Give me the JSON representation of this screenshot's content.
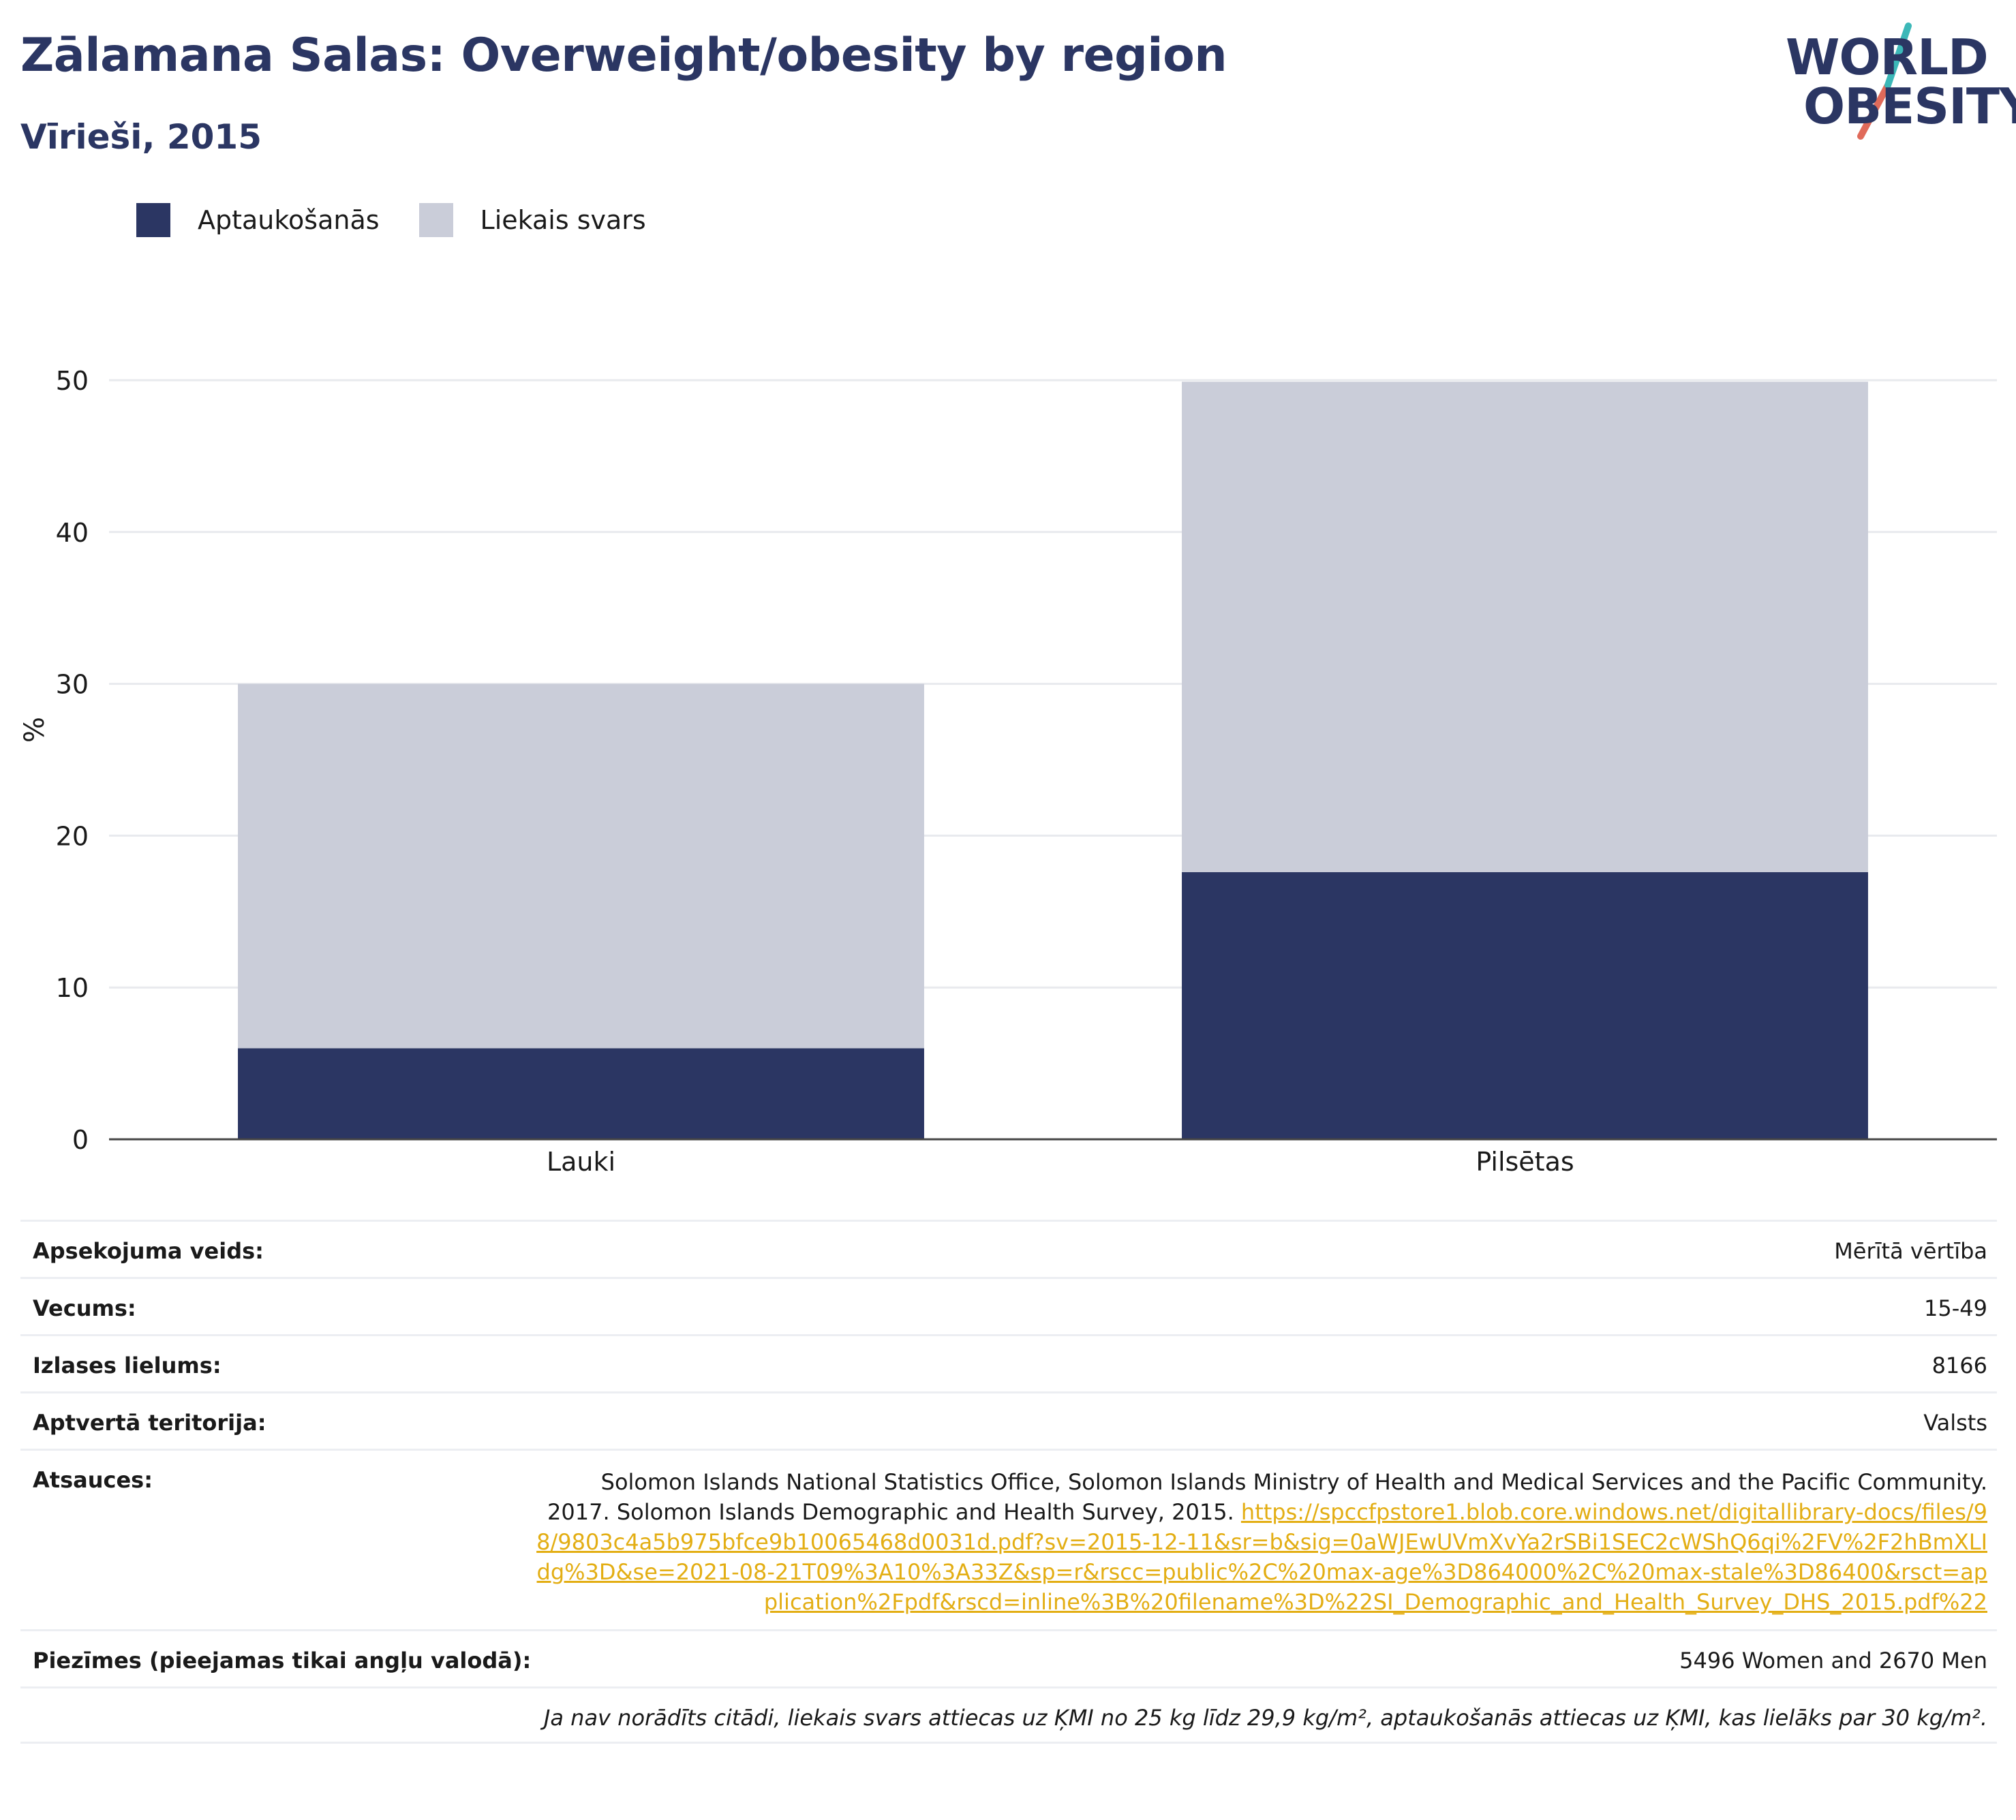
{
  "title": "Zālamana Salas: Overweight/obesity by region",
  "subtitle": "Vīrieši, 2015",
  "logo": {
    "line1": "WORLD",
    "line2": "OBESITY",
    "accent_teal": "#3cb8b8",
    "accent_red": "#e06a5a"
  },
  "colors": {
    "obesity": "#2b3663",
    "overweight": "#cacdd9",
    "text": "#2b3663",
    "link": "#e3ae14"
  },
  "chart_data": {
    "type": "bar",
    "stacked": true,
    "categories": [
      "Lauki",
      "Pilsētas"
    ],
    "series": [
      {
        "name": "Aptaukošanās",
        "values": [
          6.0,
          17.6
        ],
        "color": "#2b3663"
      },
      {
        "name": "Liekais svars",
        "values": [
          24.0,
          32.3
        ],
        "color": "#cacdd9"
      }
    ],
    "ylabel": "%",
    "ylim": [
      0,
      50
    ],
    "yticks": [
      0,
      10,
      20,
      30,
      40,
      50
    ],
    "grid": true,
    "legend": "top-left"
  },
  "table": {
    "rows": [
      {
        "key": "Apsekojuma veids:",
        "value": "Mērītā vērtība"
      },
      {
        "key": "Vecums:",
        "value": "15-49"
      },
      {
        "key": "Izlases lielums:",
        "value": "8166"
      },
      {
        "key": "Aptvertā teritorija:",
        "value": "Valsts"
      }
    ],
    "references_key": "Atsauces:",
    "references_text": "Solomon Islands National Statistics Office, Solomon Islands Ministry of Health and Medical Services and the Pacific Community. 2017. Solomon Islands Demographic and Health Survey, 2015.",
    "references_link": "https://spccfpstore1.blob.core.windows.net/digitallibrary-docs/files/98/9803c4a5b975bfce9b10065468d0031d.pdf?sv=2015-12-11&sr=b&sig=0aWJEwUVmXvYa2rSBi1SEC2cWShQ6qi%2FV%2F2hBmXLIdg%3D&se=2021-08-21T09%3A10%3A33Z&sp=r&rscc=public%2C%20max-age%3D864000%2C%20max-stale%3D86400&rsct=application%2Fpdf&rscd=inline%3B%20filename%3D%22SI_Demographic_and_Health_Survey_DHS_2015.pdf%22",
    "notes_key": "Piezīmes (pieejamas tikai angļu valodā):",
    "notes_value": "5496 Women and 2670 Men",
    "footnote": "Ja nav norādīts citādi, liekais svars attiecas uz ĶMI no 25 kg līdz 29,9 kg/m², aptaukošanās attiecas uz ĶMI, kas lielāks par 30 kg/m²."
  }
}
